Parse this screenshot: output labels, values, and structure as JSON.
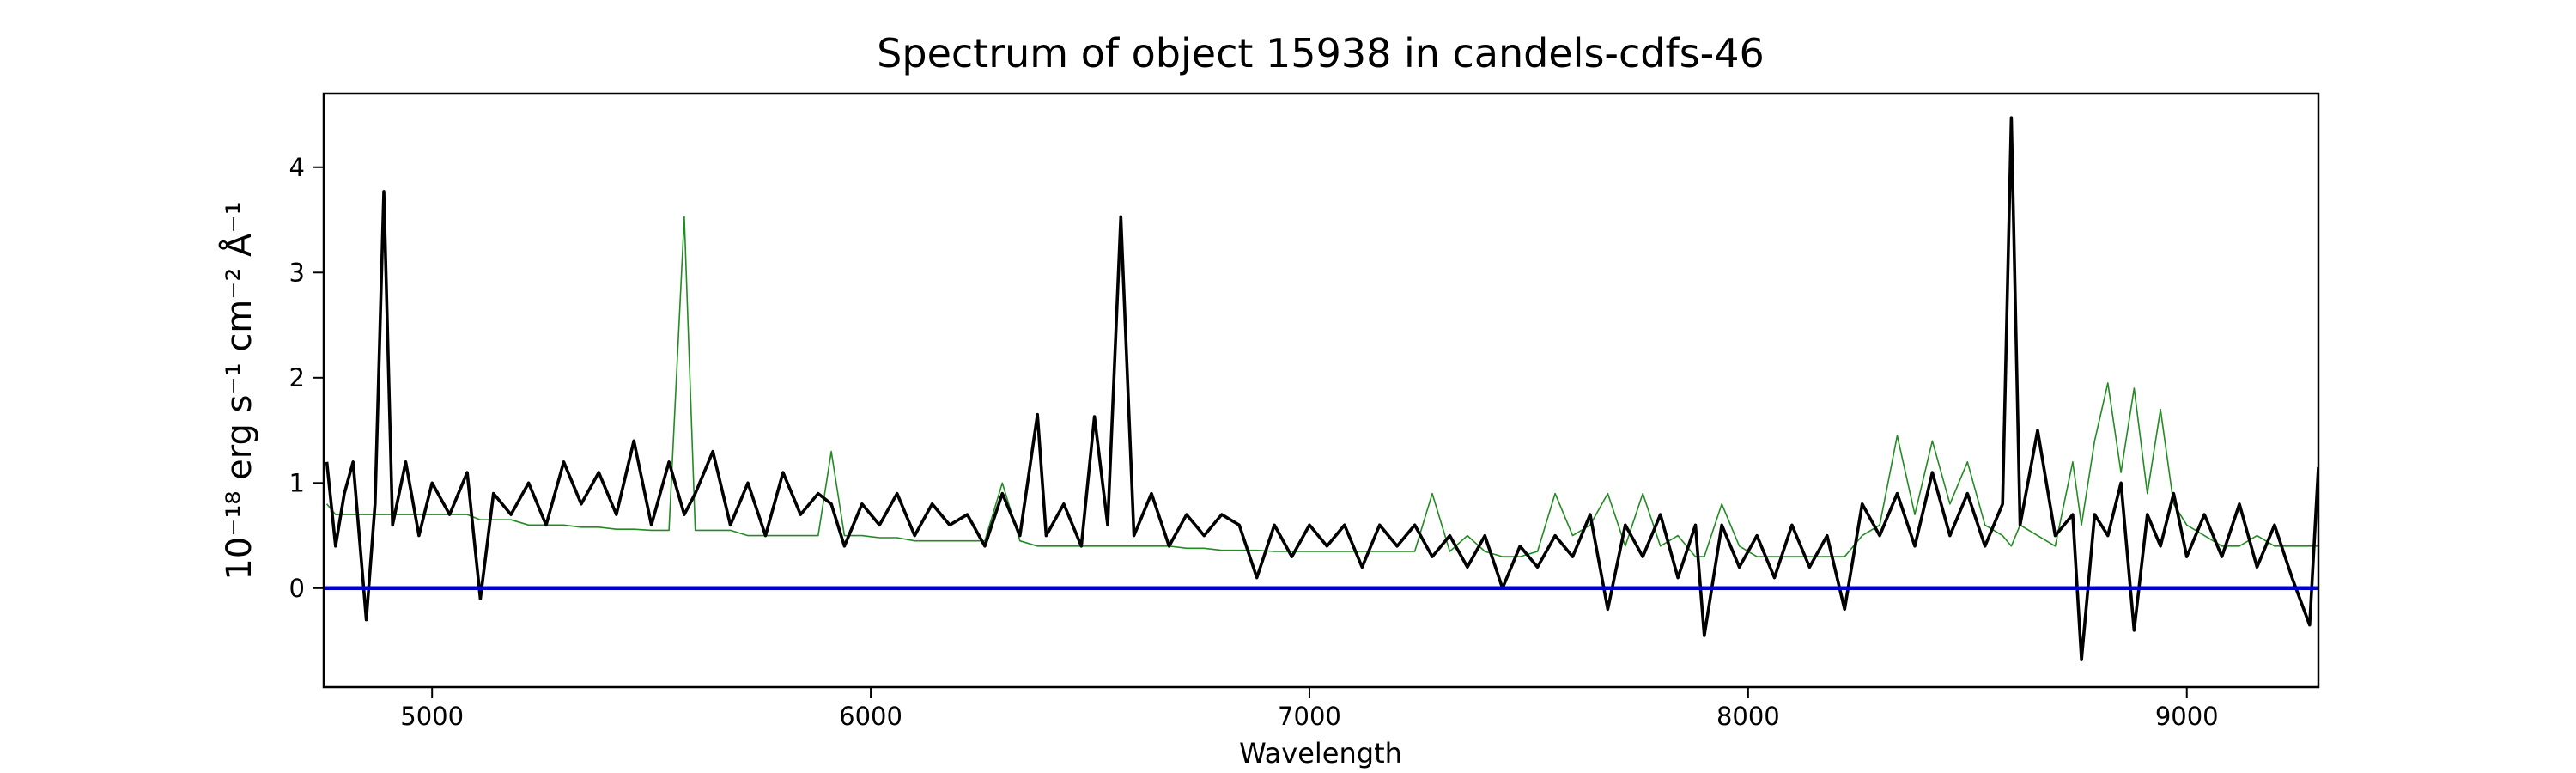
{
  "chart_data": {
    "type": "line",
    "title": "Spectrum of object 15938 in candels-cdfs-46",
    "xlabel": "Wavelength",
    "ylabel": "10⁻¹⁸ erg s⁻¹ cm⁻² Å⁻¹",
    "xlim": [
      4753,
      9300
    ],
    "ylim": [
      -0.94,
      4.7
    ],
    "xticks": [
      5000,
      6000,
      7000,
      8000,
      9000
    ],
    "yticks": [
      0,
      1,
      2,
      3,
      4
    ],
    "x": [
      4760,
      4780,
      4800,
      4820,
      4850,
      4870,
      4890,
      4910,
      4940,
      4970,
      5000,
      5040,
      5080,
      5110,
      5140,
      5180,
      5220,
      5260,
      5300,
      5340,
      5380,
      5420,
      5460,
      5500,
      5540,
      5575,
      5600,
      5640,
      5680,
      5720,
      5760,
      5800,
      5840,
      5880,
      5910,
      5940,
      5980,
      6020,
      6060,
      6100,
      6140,
      6180,
      6220,
      6260,
      6300,
      6340,
      6380,
      6400,
      6440,
      6480,
      6510,
      6540,
      6570,
      6600,
      6640,
      6680,
      6720,
      6760,
      6800,
      6840,
      6880,
      6920,
      6960,
      7000,
      7040,
      7080,
      7120,
      7160,
      7200,
      7240,
      7280,
      7320,
      7360,
      7400,
      7440,
      7480,
      7520,
      7560,
      7600,
      7640,
      7680,
      7720,
      7760,
      7800,
      7840,
      7880,
      7900,
      7940,
      7980,
      8020,
      8060,
      8100,
      8140,
      8180,
      8220,
      8260,
      8300,
      8340,
      8380,
      8420,
      8460,
      8500,
      8540,
      8580,
      8600,
      8620,
      8660,
      8700,
      8740,
      8760,
      8790,
      8820,
      8850,
      8880,
      8910,
      8940,
      8970,
      9000,
      9040,
      9080,
      9120,
      9160,
      9200,
      9240,
      9280,
      9300
    ],
    "series": [
      {
        "color": "#228b22",
        "width": 1.6,
        "values": [
          0.8,
          0.7,
          0.7,
          0.7,
          0.7,
          0.7,
          0.7,
          0.7,
          0.7,
          0.7,
          0.7,
          0.7,
          0.7,
          0.65,
          0.65,
          0.65,
          0.6,
          0.6,
          0.6,
          0.58,
          0.58,
          0.56,
          0.56,
          0.55,
          0.55,
          3.53,
          0.55,
          0.55,
          0.55,
          0.5,
          0.5,
          0.5,
          0.5,
          0.5,
          1.3,
          0.5,
          0.5,
          0.48,
          0.48,
          0.45,
          0.45,
          0.45,
          0.45,
          0.45,
          1.0,
          0.45,
          0.4,
          0.4,
          0.4,
          0.4,
          0.4,
          0.4,
          0.4,
          0.4,
          0.4,
          0.4,
          0.38,
          0.38,
          0.36,
          0.36,
          0.36,
          0.35,
          0.35,
          0.35,
          0.35,
          0.35,
          0.35,
          0.35,
          0.35,
          0.35,
          0.9,
          0.35,
          0.5,
          0.35,
          0.3,
          0.3,
          0.35,
          0.9,
          0.5,
          0.6,
          0.9,
          0.4,
          0.9,
          0.4,
          0.5,
          0.3,
          0.3,
          0.8,
          0.4,
          0.3,
          0.3,
          0.3,
          0.3,
          0.3,
          0.3,
          0.5,
          0.6,
          1.45,
          0.7,
          1.4,
          0.8,
          1.2,
          0.6,
          0.5,
          0.4,
          0.6,
          0.5,
          0.4,
          1.2,
          0.6,
          1.4,
          1.95,
          1.1,
          1.9,
          0.9,
          1.7,
          0.8,
          0.6,
          0.5,
          0.4,
          0.4,
          0.5,
          0.4,
          0.4,
          0.4,
          0.4
        ]
      },
      {
        "color": "#000000",
        "width": 3.6,
        "values": [
          1.2,
          0.4,
          0.9,
          1.2,
          -0.3,
          0.8,
          3.77,
          0.6,
          1.2,
          0.5,
          1.0,
          0.7,
          1.1,
          -0.1,
          0.9,
          0.7,
          1.0,
          0.6,
          1.2,
          0.8,
          1.1,
          0.7,
          1.4,
          0.6,
          1.2,
          0.7,
          0.9,
          1.3,
          0.6,
          1.0,
          0.5,
          1.1,
          0.7,
          0.9,
          0.8,
          0.4,
          0.8,
          0.6,
          0.9,
          0.5,
          0.8,
          0.6,
          0.7,
          0.4,
          0.9,
          0.5,
          1.65,
          0.5,
          0.8,
          0.4,
          1.63,
          0.6,
          3.53,
          0.5,
          0.9,
          0.4,
          0.7,
          0.5,
          0.7,
          0.6,
          0.1,
          0.6,
          0.3,
          0.6,
          0.4,
          0.6,
          0.2,
          0.6,
          0.4,
          0.6,
          0.3,
          0.5,
          0.2,
          0.5,
          0.0,
          0.4,
          0.2,
          0.5,
          0.3,
          0.7,
          -0.2,
          0.6,
          0.3,
          0.7,
          0.1,
          0.6,
          -0.45,
          0.6,
          0.2,
          0.5,
          0.1,
          0.6,
          0.2,
          0.5,
          -0.2,
          0.8,
          0.5,
          0.9,
          0.4,
          1.1,
          0.5,
          0.9,
          0.4,
          0.8,
          4.47,
          0.6,
          1.5,
          0.5,
          0.7,
          -0.68,
          0.7,
          0.5,
          1.0,
          -0.4,
          0.7,
          0.4,
          0.9,
          0.3,
          0.7,
          0.3,
          0.8,
          0.2,
          0.6,
          0.1,
          -0.35,
          1.15
        ]
      },
      {
        "color": "#0000cd",
        "width": 4.5,
        "x": [
          4753,
          9300
        ],
        "values": [
          0,
          0
        ]
      }
    ]
  }
}
